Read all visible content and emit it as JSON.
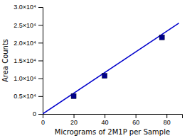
{
  "chart_data": {
    "type": "scatter",
    "xlabel": "Micrograms of 2M1P per Sample",
    "ylabel": "Area Counts",
    "xlim": [
      0,
      90
    ],
    "ylim": [
      0,
      30000
    ],
    "xticks": [
      0,
      20,
      40,
      60,
      80
    ],
    "yticks": [
      0,
      {
        "value": 5000,
        "label": "0.5×10⁴"
      },
      {
        "value": 10000,
        "label": "1.0×10⁴"
      },
      {
        "value": 15000,
        "label": "1.5×10⁴"
      },
      {
        "value": 20000,
        "label": "2.0×10⁴"
      },
      {
        "value": 25000,
        "label": "2.5×10⁴"
      },
      {
        "value": 30000,
        "label": "3.0×10⁴"
      }
    ],
    "grid": false,
    "series": [
      {
        "type": "line",
        "color": "#0000cc",
        "line_style": "solid",
        "x": [
          0,
          88
        ],
        "values": [
          0,
          25520
        ]
      },
      {
        "type": "scatter",
        "color": "#00008B",
        "marker": "square",
        "x": [
          20,
          40,
          77
        ],
        "values": [
          5000,
          10700,
          21500
        ]
      }
    ]
  }
}
